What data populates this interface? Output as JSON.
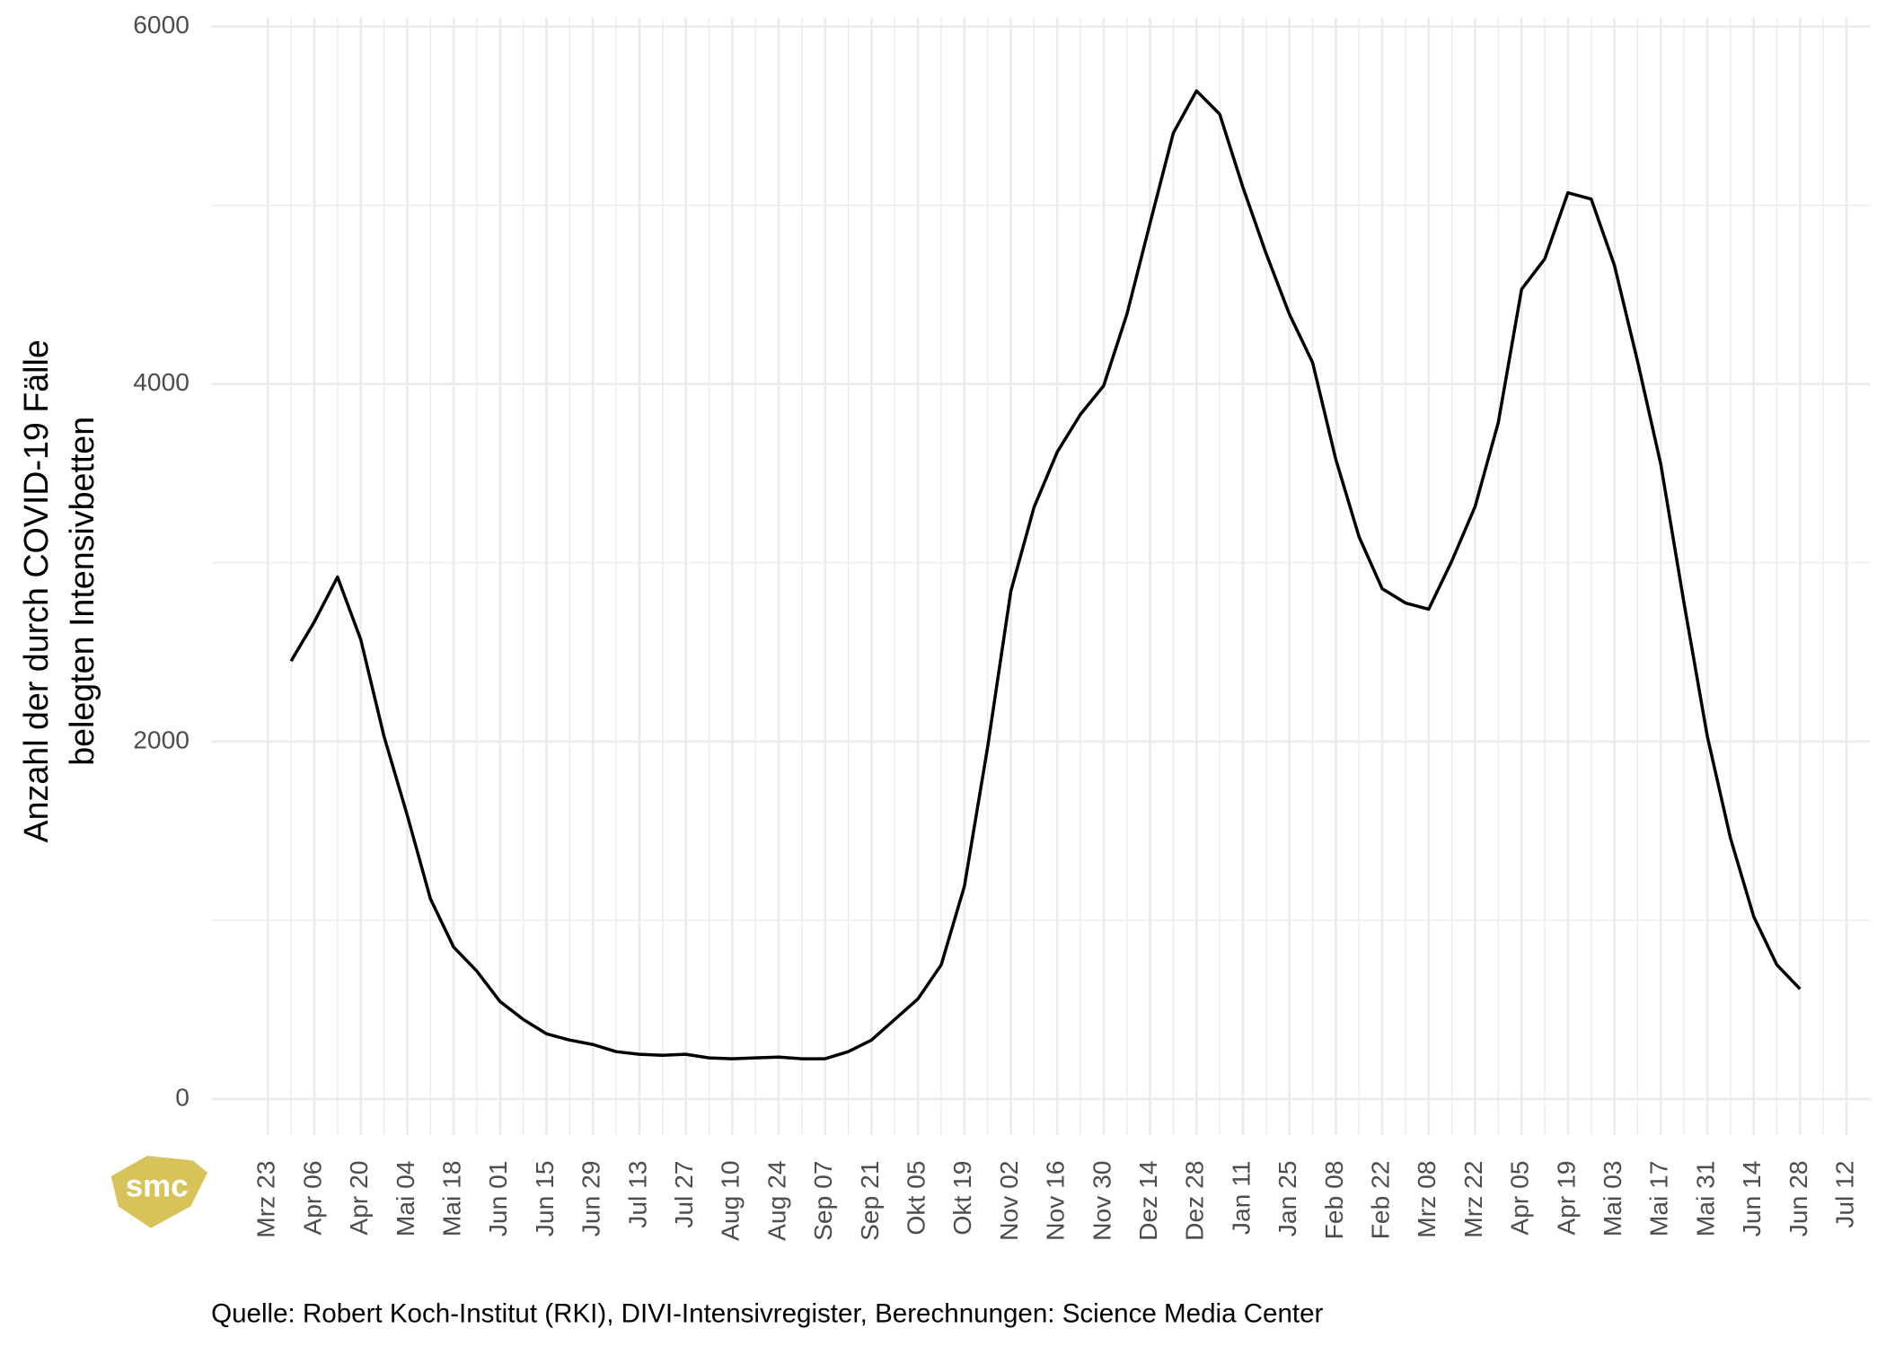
{
  "chart_data": {
    "type": "line",
    "y_label": [
      "Anzahl der durch COVID-19 Fälle",
      "belegten Intensivbetten"
    ],
    "source": "Quelle: Robert Koch-Institut (RKI), DIVI-Intensivregister, Berechnungen: Science Media Center",
    "logo": "smc",
    "categories": [
      "Mrz 23",
      null,
      "Apr 06",
      null,
      "Apr 20",
      null,
      "Mai 04",
      null,
      "Mai 18",
      null,
      "Jun 01",
      null,
      "Jun 15",
      null,
      "Jun 29",
      null,
      "Jul 13",
      null,
      "Jul 27",
      null,
      "Aug 10",
      null,
      "Aug 24",
      null,
      "Sep 07",
      null,
      "Sep 21",
      null,
      "Okt 05",
      null,
      "Okt 19",
      null,
      "Nov 02",
      null,
      "Nov 16",
      null,
      "Nov 30",
      null,
      "Dez 14",
      null,
      "Dez 28",
      null,
      "Jan 11",
      null,
      "Jan 25",
      null,
      "Feb 08",
      null,
      "Feb 22",
      null,
      "Mrz 08",
      null,
      "Mrz 22",
      null,
      "Apr 05",
      null,
      "Apr 19",
      null,
      "Mai 03",
      null,
      "Mai 17",
      null,
      "Mai 31",
      null,
      "Jun 14",
      null,
      "Jun 28",
      null,
      "Jul 12"
    ],
    "values": [
      null,
      2450,
      2670,
      2920,
      2570,
      2030,
      1590,
      1120,
      850,
      715,
      545,
      445,
      365,
      330,
      305,
      265,
      250,
      245,
      250,
      230,
      225,
      230,
      235,
      225,
      225,
      265,
      330,
      445,
      560,
      750,
      1190,
      1965,
      2840,
      3310,
      3620,
      3830,
      3990,
      4390,
      4900,
      5405,
      5640,
      5510,
      5100,
      4730,
      4390,
      4120,
      3580,
      3145,
      2855,
      2775,
      2740,
      3010,
      3315,
      3785,
      4530,
      4700,
      5070,
      5035,
      4665,
      4125,
      3550,
      2775,
      2030,
      1460,
      1020,
      750,
      615,
      null,
      null
    ],
    "color": "#000000",
    "ylim": [
      -200,
      6050
    ],
    "yticks": [
      0,
      2000,
      4000,
      6000
    ],
    "grid": true
  }
}
